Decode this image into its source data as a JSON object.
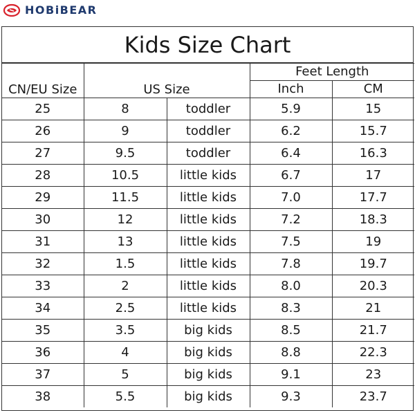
{
  "brand": {
    "name": "HOBiBEAR",
    "logo_icon": "hobibear-logo-icon",
    "color": "#1f3a6e",
    "accent": "#d9232d"
  },
  "table": {
    "title": "Kids Size Chart",
    "headers": {
      "cn_eu": "CN/EU Size",
      "us": "US Size",
      "feet_length": "Feet Length",
      "inch": "Inch",
      "cm": "CM"
    },
    "rows": [
      {
        "cn": "25",
        "us": "8",
        "group": "toddler",
        "inch": "5.9",
        "cm": "15"
      },
      {
        "cn": "26",
        "us": "9",
        "group": "toddler",
        "inch": "6.2",
        "cm": "15.7"
      },
      {
        "cn": "27",
        "us": "9.5",
        "group": "toddler",
        "inch": "6.4",
        "cm": "16.3"
      },
      {
        "cn": "28",
        "us": "10.5",
        "group": "little kids",
        "inch": "6.7",
        "cm": "17"
      },
      {
        "cn": "29",
        "us": "11.5",
        "group": "little kids",
        "inch": "7.0",
        "cm": "17.7"
      },
      {
        "cn": "30",
        "us": "12",
        "group": "little kids",
        "inch": "7.2",
        "cm": "18.3"
      },
      {
        "cn": "31",
        "us": "13",
        "group": "little kids",
        "inch": "7.5",
        "cm": "19"
      },
      {
        "cn": "32",
        "us": "1.5",
        "group": "little kids",
        "inch": "7.8",
        "cm": "19.7"
      },
      {
        "cn": "33",
        "us": "2",
        "group": "little kids",
        "inch": "8.0",
        "cm": "20.3"
      },
      {
        "cn": "34",
        "us": "2.5",
        "group": "little kids",
        "inch": "8.3",
        "cm": "21"
      },
      {
        "cn": "35",
        "us": "3.5",
        "group": "big kids",
        "inch": "8.5",
        "cm": "21.7"
      },
      {
        "cn": "36",
        "us": "4",
        "group": "big kids",
        "inch": "8.8",
        "cm": "22.3"
      },
      {
        "cn": "37",
        "us": "5",
        "group": "big kids",
        "inch": "9.1",
        "cm": "23"
      },
      {
        "cn": "38",
        "us": "5.5",
        "group": "big kids",
        "inch": "9.3",
        "cm": "23.7"
      }
    ]
  }
}
